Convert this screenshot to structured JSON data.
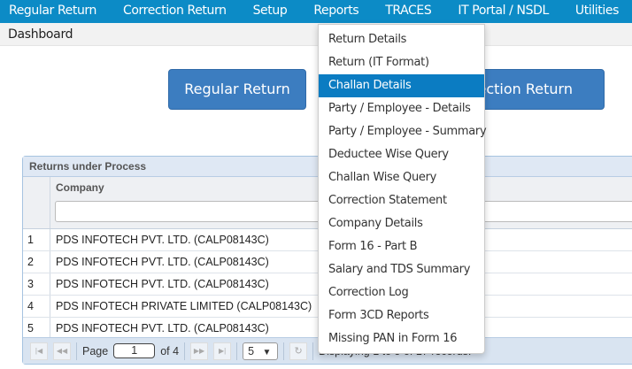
{
  "nav": [
    "Regular Return",
    "Correction Return",
    "Setup",
    "Reports",
    "TRACES",
    "IT Portal / NSDL",
    "Utilities"
  ],
  "breadcrumb": "Dashboard",
  "buttons": {
    "regular": "Regular Return",
    "correction": "Correction Return"
  },
  "grid": {
    "title": "Returns under Process",
    "column": "Company",
    "rows": [
      {
        "n": "1",
        "c": "PDS INFOTECH PVT. LTD. (CALP08143C)"
      },
      {
        "n": "2",
        "c": "PDS INFOTECH PVT. LTD. (CALP08143C)"
      },
      {
        "n": "3",
        "c": "PDS INFOTECH PVT. LTD. (CALP08143C)"
      },
      {
        "n": "4",
        "c": "PDS INFOTECH PRIVATE LIMITED (CALP08143C)"
      },
      {
        "n": "5",
        "c": "PDS INFOTECH PVT. LTD. (CALP08143C)"
      }
    ],
    "pager": {
      "page_label": "Page",
      "page": "1",
      "of": "of 4",
      "page_size": "5",
      "status": "Displaying 1 to 5 of 17 records."
    }
  },
  "menu": {
    "active_index": 2,
    "items": [
      "Return Details",
      "Return (IT Format)",
      "Challan Details",
      "Party / Employee - Details",
      "Party / Employee - Summary",
      "Deductee Wise Query",
      "Challan Wise Query",
      "Correction Statement",
      "Company Details",
      "Form 16 - Part B",
      "Salary and TDS Summary",
      "Correction Log",
      "Form 3CD Reports",
      "Missing PAN in Form 16"
    ]
  }
}
